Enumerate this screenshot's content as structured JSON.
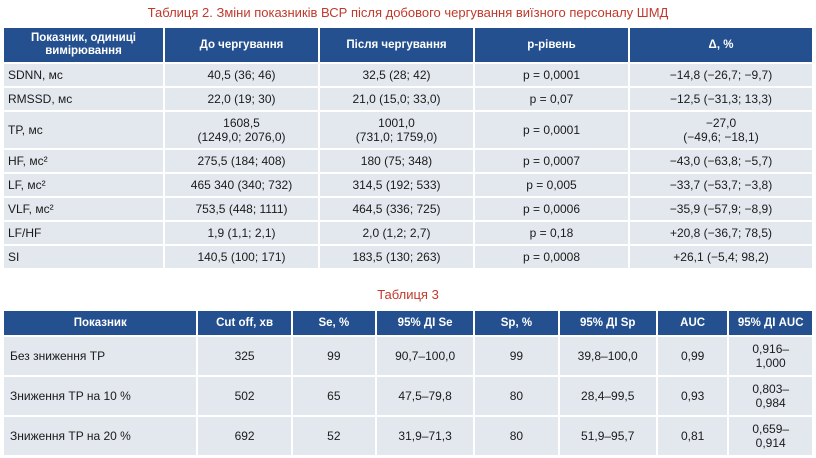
{
  "table1": {
    "caption": "Таблиця 2.  Зміни показників ВСР після добового чергування виїзного персоналу ШМД",
    "headers": [
      "Показник, одиниці вимірювання",
      "До чергування",
      "Після чергування",
      "р-рівень",
      "Δ, %"
    ],
    "rows": [
      {
        "name": "SDNN, мс",
        "before": "40,5 (36; 46)",
        "after": "32,5 (28; 42)",
        "p": "р = 0,0001",
        "delta": "−14,8 (−26,7; −9,7)"
      },
      {
        "name": "RMSSD, мс",
        "before": "22,0 (19; 30)",
        "after": "21,0 (15,0; 33,0)",
        "p": "р = 0,07",
        "delta": "−12,5 (−31,3; 13,3)"
      },
      {
        "name": "TP, мс",
        "before": "1608,5\n(1249,0; 2076,0)",
        "after": "1001,0\n(731,0; 1759,0)",
        "p": "р = 0,0001",
        "delta": "−27,0\n(−49,6; −18,1)"
      },
      {
        "name": "HF, мс²",
        "before": "275,5 (184; 408)",
        "after": "180 (75; 348)",
        "p": "р = 0,0007",
        "delta": "−43,0 (−63,8; −5,7)"
      },
      {
        "name": "LF, мс²",
        "before": "465 340 (340; 732)",
        "after": "314,5 (192; 533)",
        "p": "р = 0,005",
        "delta": "−33,7 (−53,7; −3,8)"
      },
      {
        "name": "VLF, мс²",
        "before": "753,5 (448; 1111)",
        "after": "464,5 (336; 725)",
        "p": "р = 0,0006",
        "delta": "−35,9 (−57,9; −8,9)"
      },
      {
        "name": "LF/HF",
        "before": "1,9 (1,1; 2,1)",
        "after": "2,0 (1,2; 2,7)",
        "p": "р = 0,18",
        "delta": "+20,8 (−36,7; 78,5)"
      },
      {
        "name": "SI",
        "before": "140,5 (100; 171)",
        "after": "183,5 (130; 263)",
        "p": "р = 0,0008",
        "delta": "+26,1 (−5,4; 98,2)"
      }
    ]
  },
  "table2": {
    "caption": "Таблиця 3",
    "headers": [
      "Показник",
      "Cut off, хв",
      "Se, %",
      "95% ДІ Se",
      "Sp, %",
      "95% ДІ Sp",
      "AUC",
      "95% ДІ AUC"
    ],
    "rows": [
      {
        "name": "Без зниження TP",
        "cutoff": "325",
        "se": "99",
        "se_ci": "90,7–100,0",
        "sp": "99",
        "sp_ci": "39,8–100,0",
        "auc": "0,99",
        "auc_ci": "0,916–\n1,000"
      },
      {
        "name": "Зниження TP на 10 %",
        "cutoff": "502",
        "se": "65",
        "se_ci": "47,5–79,8",
        "sp": "80",
        "sp_ci": "28,4–99,5",
        "auc": "0,93",
        "auc_ci": "0,803–\n0,984"
      },
      {
        "name": "Зниження TP на 20 %",
        "cutoff": "692",
        "se": "52",
        "se_ci": "31,9–71,3",
        "sp": "80",
        "sp_ci": "51,9–95,7",
        "auc": "0,81",
        "auc_ci": "0,659–\n0,914"
      }
    ]
  }
}
